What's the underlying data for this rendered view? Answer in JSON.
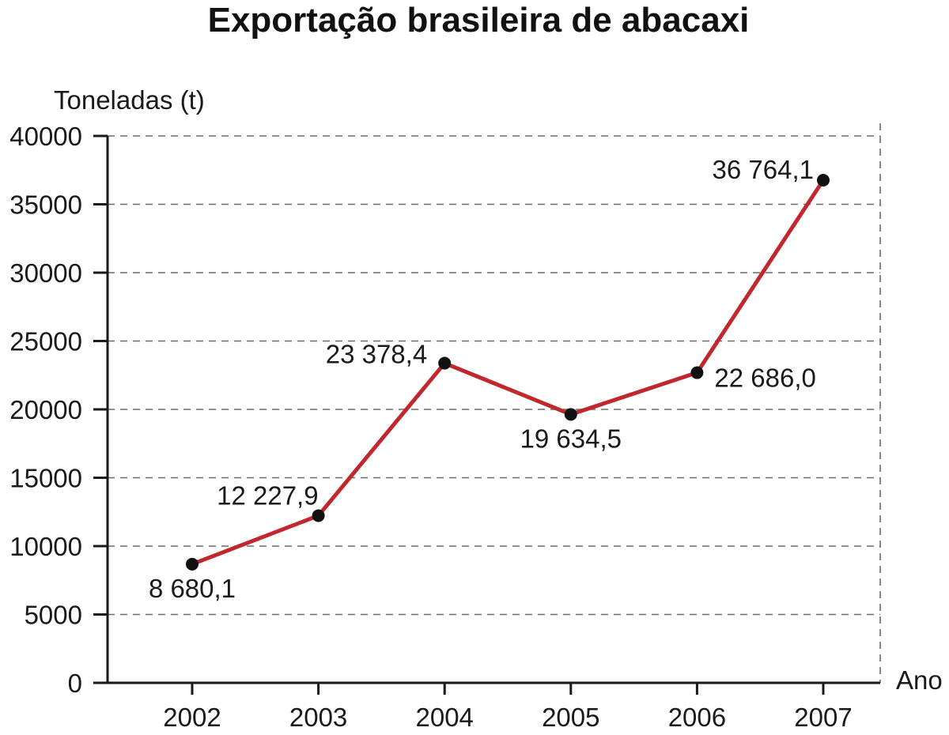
{
  "chart_data": {
    "type": "line",
    "title": "Exportação brasileira de abacaxi",
    "ylabel": "Toneladas (t)",
    "xlabel": "Ano",
    "categories": [
      "2002",
      "2003",
      "2004",
      "2005",
      "2006",
      "2007"
    ],
    "series": [
      {
        "values": [
          8680.1,
          12227.9,
          23378.4,
          19634.5,
          22686.0,
          36764.1
        ],
        "data_labels": [
          "8 680,1",
          "12 227,9",
          "23 378,4",
          "19 634,5",
          "22 686,0",
          "36 764,1"
        ],
        "color": "#c1272d"
      }
    ],
    "ylim": [
      0,
      40000
    ],
    "yticks": [
      "0",
      "5000",
      "10000",
      "15000",
      "20000",
      "25000",
      "30000",
      "35000",
      "40000"
    ],
    "grid": true,
    "marker_color": "#111111"
  }
}
